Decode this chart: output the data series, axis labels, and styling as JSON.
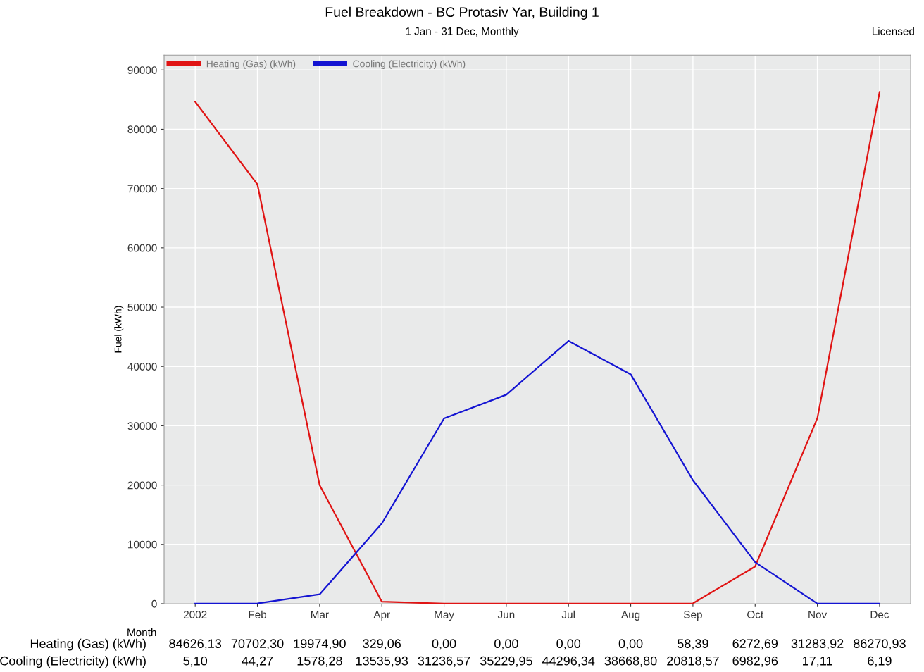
{
  "chart_data": {
    "type": "line",
    "title": "Fuel Breakdown - BC Protasiv Yar, Building 1",
    "subtitle": "1 Jan - 31 Dec, Monthly",
    "xlabel": "Month",
    "ylabel": "Fuel (kWh)",
    "annotations": [
      "Licensed"
    ],
    "categories": [
      "2002",
      "Feb",
      "Mar",
      "Apr",
      "May",
      "Jun",
      "Jul",
      "Aug",
      "Sep",
      "Oct",
      "Nov",
      "Dec"
    ],
    "series": [
      {
        "name": "Heating (Gas) (kWh)",
        "color": "#e01414",
        "values": [
          84626.13,
          70702.3,
          19974.9,
          329.06,
          0.0,
          0.0,
          0.0,
          0.0,
          58.39,
          6272.69,
          31283.92,
          86270.93
        ],
        "value_labels": [
          "84626,13",
          "70702,30",
          "19974,90",
          "329,06",
          "0,00",
          "0,00",
          "0,00",
          "0,00",
          "58,39",
          "6272,69",
          "31283,92",
          "86270,93"
        ]
      },
      {
        "name": "Cooling (Electricity) (kWh)",
        "color": "#1414d2",
        "values": [
          5.1,
          44.27,
          1578.28,
          13535.93,
          31236.57,
          35229.95,
          44296.34,
          38668.8,
          20818.57,
          6982.96,
          17.11,
          6.19
        ],
        "value_labels": [
          "5,10",
          "44,27",
          "1578,28",
          "13535,93",
          "31236,57",
          "35229,95",
          "44296,34",
          "38668,80",
          "20818,57",
          "6982,96",
          "17,11",
          "6,19"
        ]
      }
    ],
    "ylim": [
      0,
      92500
    ],
    "yticks": [
      0,
      10000,
      20000,
      30000,
      40000,
      50000,
      60000,
      70000,
      80000,
      90000
    ],
    "grid": true,
    "legend": "top left",
    "marker": "none",
    "line_style": "solid",
    "data_labels": true
  }
}
